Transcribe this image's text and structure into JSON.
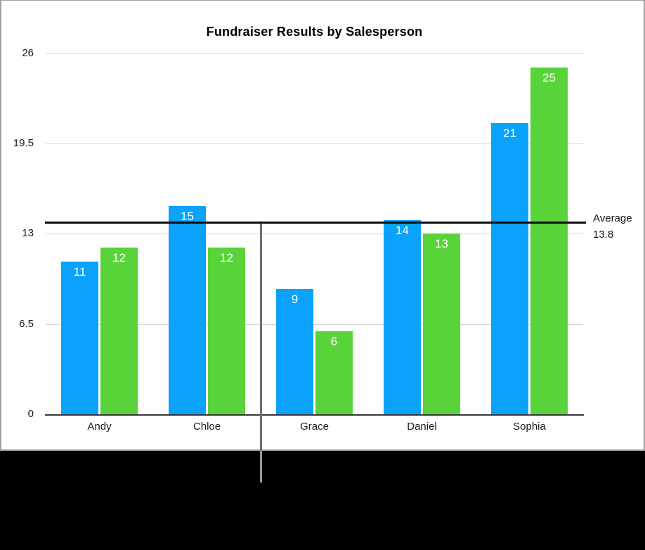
{
  "page": {
    "background_color": "#000000",
    "canvas_background": "#ffffff",
    "canvas_border_color": "#a0a0a0"
  },
  "chart_data": {
    "type": "bar",
    "title": "Fundraiser Results by Salesperson",
    "categories": [
      "Andy",
      "Chloe",
      "Grace",
      "Daniel",
      "Sophia"
    ],
    "series": [
      {
        "color_name": "blue",
        "color": "#0aa2fa",
        "values": [
          11,
          15,
          9,
          14,
          21
        ]
      },
      {
        "color_name": "green",
        "color": "#58d33a",
        "values": [
          12,
          12,
          6,
          13,
          25
        ]
      }
    ],
    "bar_value_label_color": "#ffffff",
    "y_axis": {
      "tick_labels": [
        "0",
        "6.5",
        "13",
        "19.5",
        "26"
      ],
      "tick_values": [
        0,
        6.5,
        13,
        19.5,
        26
      ],
      "range": [
        0,
        26
      ],
      "grid": true,
      "gridline_color": "#d7d7d7",
      "axis_line_color": "#383838"
    },
    "x_axis": {
      "label_color": "#1a1a1a"
    },
    "average_line": {
      "value": 13.8,
      "label_lines": [
        "Average",
        "13.8"
      ],
      "color": "#0d0d0d"
    },
    "guide_line": {
      "between_categories": [
        "Chloe",
        "Grace"
      ],
      "color": "#6f6f6f"
    },
    "legend": "none"
  }
}
